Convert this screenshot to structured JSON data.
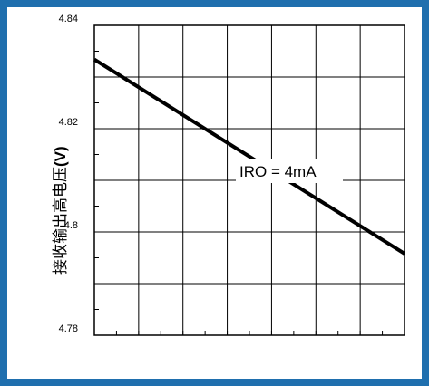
{
  "colors": {
    "frame": "#1f6fae",
    "line": "#000000",
    "grid": "#000000"
  },
  "chart_data": {
    "type": "line",
    "title": "",
    "xlabel": "",
    "ylabel": "接收输出高电压",
    "ylabel_unit": "(V)",
    "ylim": [
      4.78,
      4.84
    ],
    "yticks": [
      4.84,
      4.82,
      4.8,
      4.78
    ],
    "ytick_labels": [
      "4.84",
      "4.82",
      "4.8",
      "4.78"
    ],
    "xlim": [
      0,
      1
    ],
    "grid": true,
    "series": [
      {
        "x": [
          0,
          1
        ],
        "values": [
          4.8334,
          4.7958
        ]
      }
    ],
    "annotations": [
      {
        "text": "IRO = 4mA"
      }
    ]
  }
}
